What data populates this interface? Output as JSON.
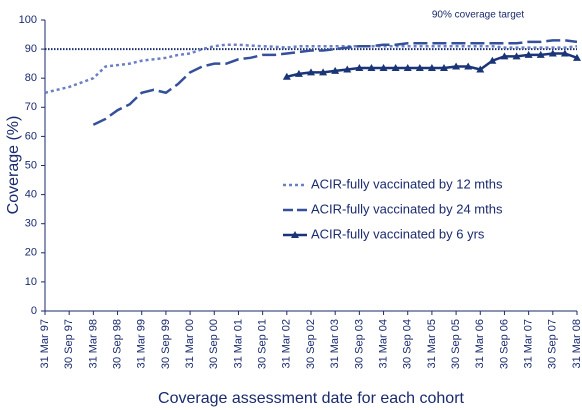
{
  "chart_data": {
    "type": "line",
    "x_label": "Coverage assessment date for each cohort",
    "y_label": "Coverage (%)",
    "categories": [
      "31 Mar 97",
      null,
      "30 Sep 97",
      null,
      "31 Mar 98",
      null,
      "30 Sep 98",
      null,
      "31 Mar 99",
      null,
      "30 Sep 99",
      null,
      "31 Mar 00",
      null,
      "30 Sep 00",
      null,
      "31 Mar 01",
      null,
      "30 Sep 01",
      null,
      "31 Mar 02",
      null,
      "30 Sep 02",
      null,
      "31 Mar 03",
      null,
      "30 Sep 03",
      null,
      "31 Mar 04",
      null,
      "30 Sep 04",
      null,
      "31 Mar 05",
      null,
      "30 Sep 05",
      null,
      "31 Mar 06",
      null,
      "30 Sep 06",
      null,
      "31 Mar 07",
      null,
      "30 Sep 07",
      null,
      "31 Mar 08"
    ],
    "series": [
      {
        "name": "ACIR-fully vaccinated by 12 mths",
        "color": "#6b7fc4",
        "style": "dotted",
        "values": [
          75,
          76,
          77,
          78.5,
          80,
          84,
          84.5,
          85,
          86,
          86.5,
          87,
          88,
          88.5,
          90,
          91,
          91.5,
          91.5,
          91.2,
          91,
          90.8,
          90.5,
          91,
          91,
          91,
          91,
          91,
          91,
          91,
          91,
          91,
          91,
          91,
          91,
          91,
          91,
          91,
          91,
          91,
          90.5,
          90.5,
          90.5,
          90.5,
          90.5,
          90.5,
          91
        ]
      },
      {
        "name": "ACIR-fully vaccinated by 24 mths",
        "color": "#34509a",
        "style": "dashed",
        "values": [
          null,
          null,
          null,
          null,
          64,
          66,
          69,
          71,
          75,
          76,
          75,
          78,
          82,
          84,
          85,
          85,
          86.5,
          87,
          88,
          88,
          88.5,
          89,
          89.5,
          89.5,
          90,
          90.5,
          91,
          91,
          91.5,
          91.5,
          92,
          92,
          92,
          92,
          92,
          92,
          92,
          92,
          92,
          92,
          92.5,
          92.5,
          93,
          93,
          92.5
        ]
      },
      {
        "name": "ACIR-fully vaccinated by 6 yrs",
        "color": "#1a3478",
        "style": "solid",
        "marker": "triangle",
        "values": [
          null,
          null,
          null,
          null,
          null,
          null,
          null,
          null,
          null,
          null,
          null,
          null,
          null,
          null,
          null,
          null,
          null,
          null,
          null,
          null,
          80.5,
          81.5,
          82,
          82,
          82.5,
          83,
          83.5,
          83.5,
          83.5,
          83.5,
          83.5,
          83.5,
          83.5,
          83.5,
          84,
          84,
          83,
          86,
          87.5,
          87.5,
          88,
          88,
          88.5,
          88.5,
          87
        ]
      }
    ],
    "reference_line": {
      "value": 90,
      "label": "90% coverage target",
      "color": "#1a2a6e"
    },
    "ylim": [
      0,
      100
    ],
    "yticks": [
      0,
      10,
      20,
      30,
      40,
      50,
      60,
      70,
      80,
      90,
      100
    ]
  }
}
